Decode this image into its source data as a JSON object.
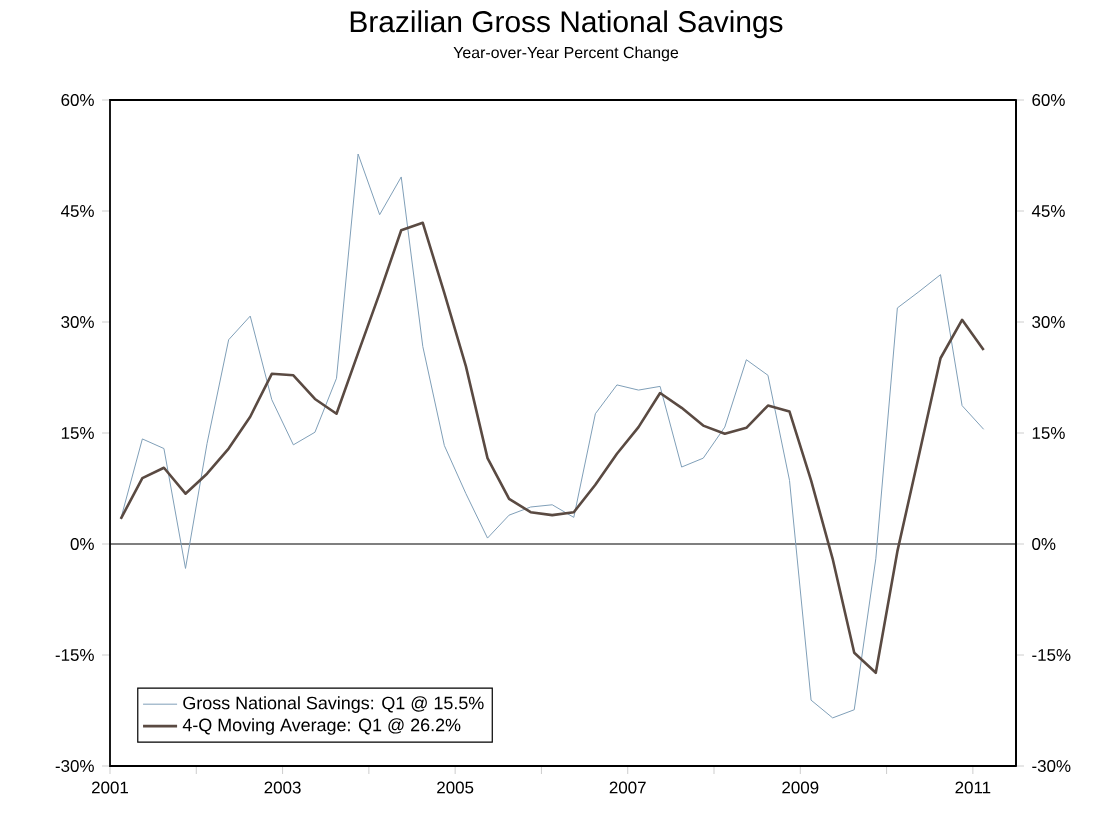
{
  "chart_data": {
    "type": "line",
    "title": "Brazilian Gross National Savings",
    "subtitle": "Year-over-Year Percent Change",
    "x": [
      2001.125,
      2001.375,
      2001.625,
      2001.875,
      2002.125,
      2002.375,
      2002.625,
      2002.875,
      2003.125,
      2003.375,
      2003.625,
      2003.875,
      2004.125,
      2004.375,
      2004.625,
      2004.875,
      2005.125,
      2005.375,
      2005.625,
      2005.875,
      2006.125,
      2006.375,
      2006.625,
      2006.875,
      2007.125,
      2007.375,
      2007.625,
      2007.875,
      2008.125,
      2008.375,
      2008.625,
      2008.875,
      2009.125,
      2009.375,
      2009.625,
      2009.875,
      2010.125,
      2010.375,
      2010.625,
      2010.875,
      2011.125
    ],
    "series": [
      {
        "name": "Gross National Savings: Q1 @ 15.5%",
        "color": "#7f9fb8",
        "values": [
          3.4,
          14.2,
          12.9,
          -3.3,
          13.6,
          27.6,
          30.8,
          19.5,
          13.4,
          15.1,
          22.4,
          52.7,
          44.5,
          49.6,
          26.7,
          13.3,
          6.8,
          0.8,
          3.9,
          5.0,
          5.3,
          3.6,
          17.6,
          21.5,
          20.8,
          21.3,
          10.4,
          11.6,
          15.8,
          24.9,
          22.8,
          8.6,
          -21.1,
          -23.5,
          -22.4,
          -2.0,
          31.9,
          34.1,
          36.4,
          18.7,
          15.5
        ]
      },
      {
        "name": "4-Q Moving Average: Q1 @ 26.2%",
        "color": "#5a4a42",
        "values": [
          3.4,
          8.9,
          10.3,
          6.8,
          9.5,
          12.9,
          17.2,
          23.0,
          22.8,
          19.6,
          17.6,
          25.8,
          33.9,
          42.4,
          43.4,
          33.9,
          24.0,
          11.6,
          6.1,
          4.3,
          3.9,
          4.3,
          8.0,
          12.2,
          15.8,
          20.4,
          18.4,
          16.0,
          14.9,
          15.7,
          18.7,
          17.9,
          8.6,
          -2.0,
          -14.7,
          -17.4,
          -1.0,
          12.0,
          25.1,
          30.3,
          26.2
        ]
      }
    ],
    "xlim": [
      2001,
      2011.5
    ],
    "xticks": [
      2001,
      {
        "value": 2002,
        "label": null
      },
      2003,
      {
        "value": 2004,
        "label": null
      },
      2005,
      {
        "value": 2006,
        "label": null
      },
      2007,
      {
        "value": 2008,
        "label": null
      },
      2009,
      {
        "value": 2010,
        "label": null
      },
      2011
    ],
    "ylim": [
      -30,
      60
    ],
    "yticks": [
      {
        "value": -30,
        "label": "-30%"
      },
      {
        "value": -15,
        "label": "-15%"
      },
      {
        "value": 0,
        "label": "0%"
      },
      {
        "value": 15,
        "label": "15%"
      },
      {
        "value": 30,
        "label": "30%"
      },
      {
        "value": 45,
        "label": "45%"
      },
      {
        "value": 60,
        "label": "60%"
      }
    ],
    "y2lim": [
      -30,
      60
    ],
    "y2ticks": [
      {
        "value": -30,
        "label": "-30%"
      },
      {
        "value": -15,
        "label": "-15%"
      },
      {
        "value": 0,
        "label": "0%"
      },
      {
        "value": 15,
        "label": "15%"
      },
      {
        "value": 30,
        "label": "30%"
      },
      {
        "value": 45,
        "label": "45%"
      },
      {
        "value": 60,
        "label": "60%"
      }
    ],
    "ref_lines": [
      {
        "axis": "y",
        "value": 0,
        "color": "#000000"
      }
    ],
    "legend": "bottom left",
    "grid": false
  }
}
